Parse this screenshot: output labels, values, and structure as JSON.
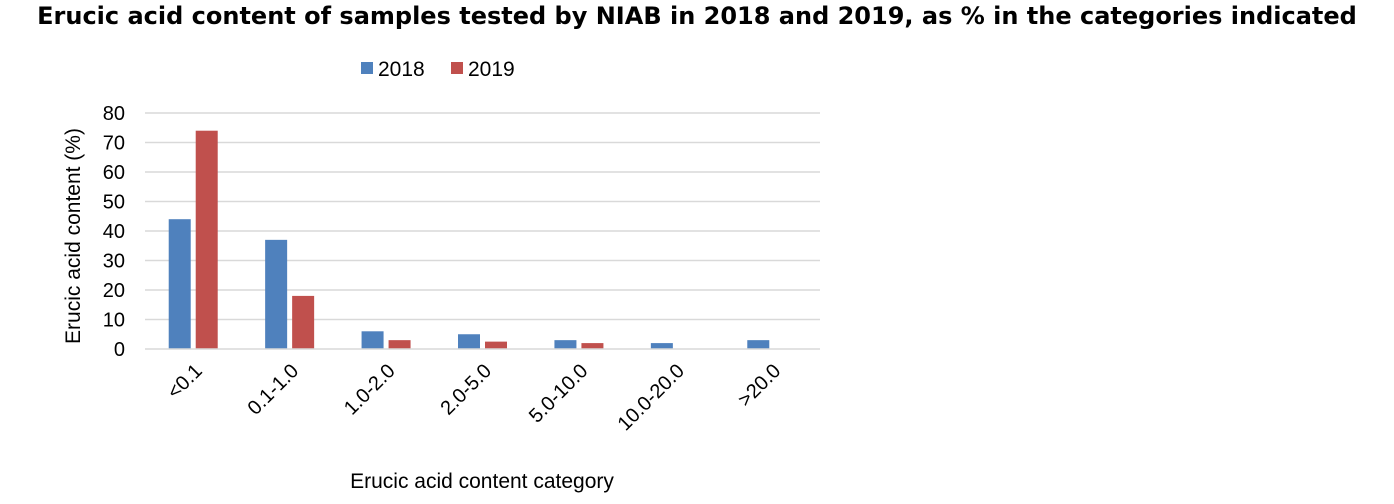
{
  "chart_data": {
    "type": "bar",
    "title": "Erucic acid content of samples tested by NIAB in 2018 and 2019, as % in the categories indicated",
    "xlabel": "Erucic acid content category",
    "ylabel": "Erucic acid content  (%)",
    "categories": [
      "<0.1",
      "0.1-1.0",
      "1.0-2.0",
      "2.0-5.0",
      "5.0-10.0",
      "10.0-20.0",
      ">20.0"
    ],
    "yticks": [
      "0",
      "10",
      "20",
      "30",
      "40",
      "50",
      "60",
      "70",
      "80"
    ],
    "ylim": [
      0,
      80
    ],
    "grid": true,
    "legend_position": "top",
    "series": [
      {
        "name": "2018",
        "color": "#4F81BD",
        "values": [
          44,
          37,
          6,
          5,
          3,
          2,
          3
        ]
      },
      {
        "name": "2019",
        "color": "#C0504D",
        "values": [
          74,
          18,
          3,
          2.5,
          2,
          0,
          0
        ]
      }
    ]
  }
}
